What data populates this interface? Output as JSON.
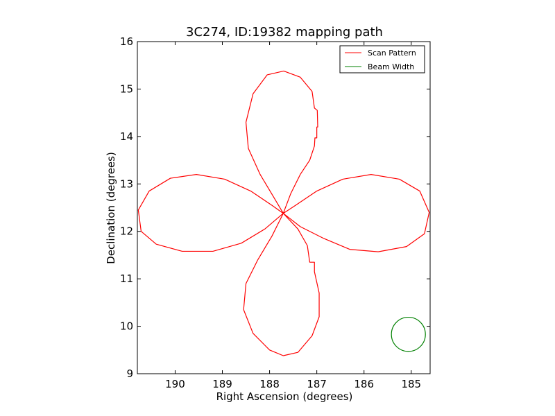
{
  "chart_data": {
    "type": "line",
    "title": "3C274, ID:19382 mapping path",
    "xlabel": "Right Ascension (degrees)",
    "ylabel": "Declination (degrees)",
    "xlim": [
      190.8,
      184.6
    ],
    "ylim": [
      9,
      16
    ],
    "x_inverted": true,
    "xticks": [
      190,
      189,
      188,
      187,
      186,
      185
    ],
    "yticks": [
      9,
      10,
      11,
      12,
      13,
      14,
      15,
      16
    ],
    "grid": false,
    "legend_position": "top-right",
    "center": {
      "ra": 187.71,
      "dec": 12.38
    },
    "series": [
      {
        "name": "Scan Pattern",
        "color": "#ff0000",
        "description_of_shape": "four-lobed rose curve centered on source",
        "points": [
          [
            187.71,
            12.38
          ],
          [
            187.95,
            12.55
          ],
          [
            188.4,
            12.85
          ],
          [
            188.95,
            13.1
          ],
          [
            189.55,
            13.2
          ],
          [
            190.1,
            13.12
          ],
          [
            190.55,
            12.85
          ],
          [
            190.78,
            12.45
          ],
          [
            190.72,
            12.0
          ],
          [
            190.4,
            11.73
          ],
          [
            189.85,
            11.58
          ],
          [
            189.2,
            11.58
          ],
          [
            188.6,
            11.75
          ],
          [
            188.1,
            12.05
          ],
          [
            187.71,
            12.38
          ],
          [
            187.95,
            11.9
          ],
          [
            188.25,
            11.4
          ],
          [
            188.5,
            10.9
          ],
          [
            188.55,
            10.35
          ],
          [
            188.35,
            9.85
          ],
          [
            188.0,
            9.5
          ],
          [
            187.71,
            9.38
          ],
          [
            187.4,
            9.45
          ],
          [
            187.1,
            9.8
          ],
          [
            186.95,
            10.2
          ],
          [
            186.95,
            10.7
          ],
          [
            187.05,
            11.15
          ],
          [
            187.05,
            11.35
          ],
          [
            187.15,
            11.35
          ],
          [
            187.2,
            11.7
          ],
          [
            187.4,
            12.05
          ],
          [
            187.71,
            12.38
          ],
          [
            187.45,
            12.55
          ],
          [
            187.0,
            12.85
          ],
          [
            186.45,
            13.1
          ],
          [
            185.85,
            13.2
          ],
          [
            185.25,
            13.1
          ],
          [
            184.82,
            12.85
          ],
          [
            184.62,
            12.4
          ],
          [
            184.72,
            11.95
          ],
          [
            185.1,
            11.68
          ],
          [
            185.7,
            11.57
          ],
          [
            186.3,
            11.62
          ],
          [
            186.85,
            11.85
          ],
          [
            187.35,
            12.1
          ],
          [
            187.71,
            12.38
          ],
          [
            187.55,
            12.8
          ],
          [
            187.35,
            13.2
          ],
          [
            187.15,
            13.5
          ],
          [
            187.05,
            13.8
          ],
          [
            187.04,
            13.97
          ],
          [
            187.0,
            13.97
          ],
          [
            187.0,
            14.2
          ],
          [
            186.98,
            14.2
          ],
          [
            186.99,
            14.55
          ],
          [
            187.05,
            14.6
          ],
          [
            187.1,
            14.95
          ],
          [
            187.35,
            15.25
          ],
          [
            187.7,
            15.38
          ],
          [
            188.05,
            15.3
          ],
          [
            188.35,
            14.9
          ],
          [
            188.5,
            14.3
          ],
          [
            188.45,
            13.75
          ],
          [
            188.2,
            13.2
          ],
          [
            187.9,
            12.7
          ],
          [
            187.71,
            12.38
          ]
        ]
      },
      {
        "name": "Beam Width",
        "color": "#008000",
        "center": {
          "ra": 185.06,
          "dec": 9.83
        },
        "radius_deg": 0.36
      }
    ]
  }
}
